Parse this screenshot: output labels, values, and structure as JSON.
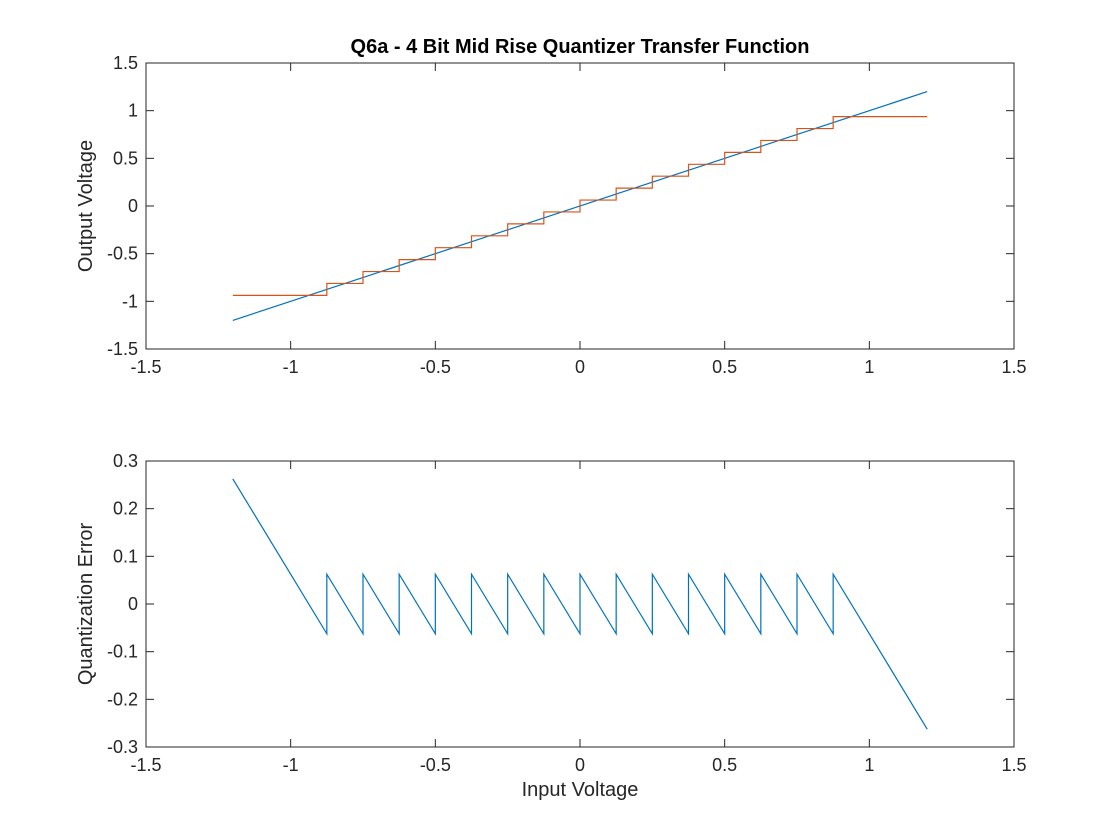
{
  "figure": {
    "title": "Q6a - 4 Bit Mid Rise Quantizer Transfer Function"
  },
  "colors": {
    "series_ideal": "#0072BD",
    "series_quantized": "#D95319",
    "axes": "#262626"
  },
  "chart_data": [
    {
      "type": "line",
      "title": "Q6a - 4 Bit Mid Rise Quantizer Transfer Function",
      "xlabel": "",
      "ylabel": "Output Voltage",
      "xlim": [
        -1.5,
        1.5
      ],
      "ylim": [
        -1.5,
        1.5
      ],
      "xticks": [
        -1.5,
        -1,
        -0.5,
        0,
        0.5,
        1,
        1.5
      ],
      "yticks": [
        -1.5,
        -1,
        -0.5,
        0,
        0.5,
        1,
        1.5
      ],
      "xtick_labels": [
        "-1.5",
        "-1",
        "-0.5",
        "0",
        "0.5",
        "1",
        "1.5"
      ],
      "ytick_labels": [
        "-1.5",
        "-1",
        "-0.5",
        "0",
        "0.5",
        "1",
        "1.5"
      ],
      "grid": false,
      "series": [
        {
          "color": "#0072BD",
          "x": [
            -1.2,
            1.2
          ],
          "y": [
            -1.2,
            1.2
          ]
        },
        {
          "color": "#D95319",
          "x": [
            -1.2,
            -0.875,
            -0.875,
            -0.75,
            -0.75,
            -0.625,
            -0.625,
            -0.5,
            -0.5,
            -0.375,
            -0.375,
            -0.25,
            -0.25,
            -0.125,
            -0.125,
            0,
            0,
            0.125,
            0.125,
            0.25,
            0.25,
            0.375,
            0.375,
            0.5,
            0.5,
            0.625,
            0.625,
            0.75,
            0.75,
            0.875,
            0.875,
            1.2
          ],
          "y": [
            -0.9375,
            -0.9375,
            -0.8125,
            -0.8125,
            -0.6875,
            -0.6875,
            -0.5625,
            -0.5625,
            -0.4375,
            -0.4375,
            -0.3125,
            -0.3125,
            -0.1875,
            -0.1875,
            -0.0625,
            -0.0625,
            0.0625,
            0.0625,
            0.1875,
            0.1875,
            0.3125,
            0.3125,
            0.4375,
            0.4375,
            0.5625,
            0.5625,
            0.6875,
            0.6875,
            0.8125,
            0.8125,
            0.9375,
            0.9375
          ]
        }
      ]
    },
    {
      "type": "line",
      "title": "",
      "xlabel": "Input Voltage",
      "ylabel": "Quantization Error",
      "xlim": [
        -1.5,
        1.5
      ],
      "ylim": [
        -0.3,
        0.3
      ],
      "xticks": [
        -1.5,
        -1,
        -0.5,
        0,
        0.5,
        1,
        1.5
      ],
      "yticks": [
        -0.3,
        -0.2,
        -0.1,
        0,
        0.1,
        0.2,
        0.3
      ],
      "xtick_labels": [
        "-1.5",
        "-1",
        "-0.5",
        "0",
        "0.5",
        "1",
        "1.5"
      ],
      "ytick_labels": [
        "-0.3",
        "-0.2",
        "-0.1",
        "0",
        "0.1",
        "0.2",
        "0.3"
      ],
      "grid": false,
      "series": [
        {
          "color": "#0072BD",
          "x": [
            -1.2,
            -0.875,
            -0.875,
            -0.75,
            -0.75,
            -0.625,
            -0.625,
            -0.5,
            -0.5,
            -0.375,
            -0.375,
            -0.25,
            -0.25,
            -0.125,
            -0.125,
            0,
            0,
            0.125,
            0.125,
            0.25,
            0.25,
            0.375,
            0.375,
            0.5,
            0.5,
            0.625,
            0.625,
            0.75,
            0.75,
            0.875,
            0.875,
            1.2
          ],
          "y": [
            0.2625,
            -0.0625,
            0.0625,
            -0.0625,
            0.0625,
            -0.0625,
            0.0625,
            -0.0625,
            0.0625,
            -0.0625,
            0.0625,
            -0.0625,
            0.0625,
            -0.0625,
            0.0625,
            -0.0625,
            0.0625,
            -0.0625,
            0.0625,
            -0.0625,
            0.0625,
            -0.0625,
            0.0625,
            -0.0625,
            0.0625,
            -0.0625,
            0.0625,
            -0.0625,
            0.0625,
            -0.0625,
            0.0625,
            -0.2625
          ]
        }
      ]
    }
  ]
}
